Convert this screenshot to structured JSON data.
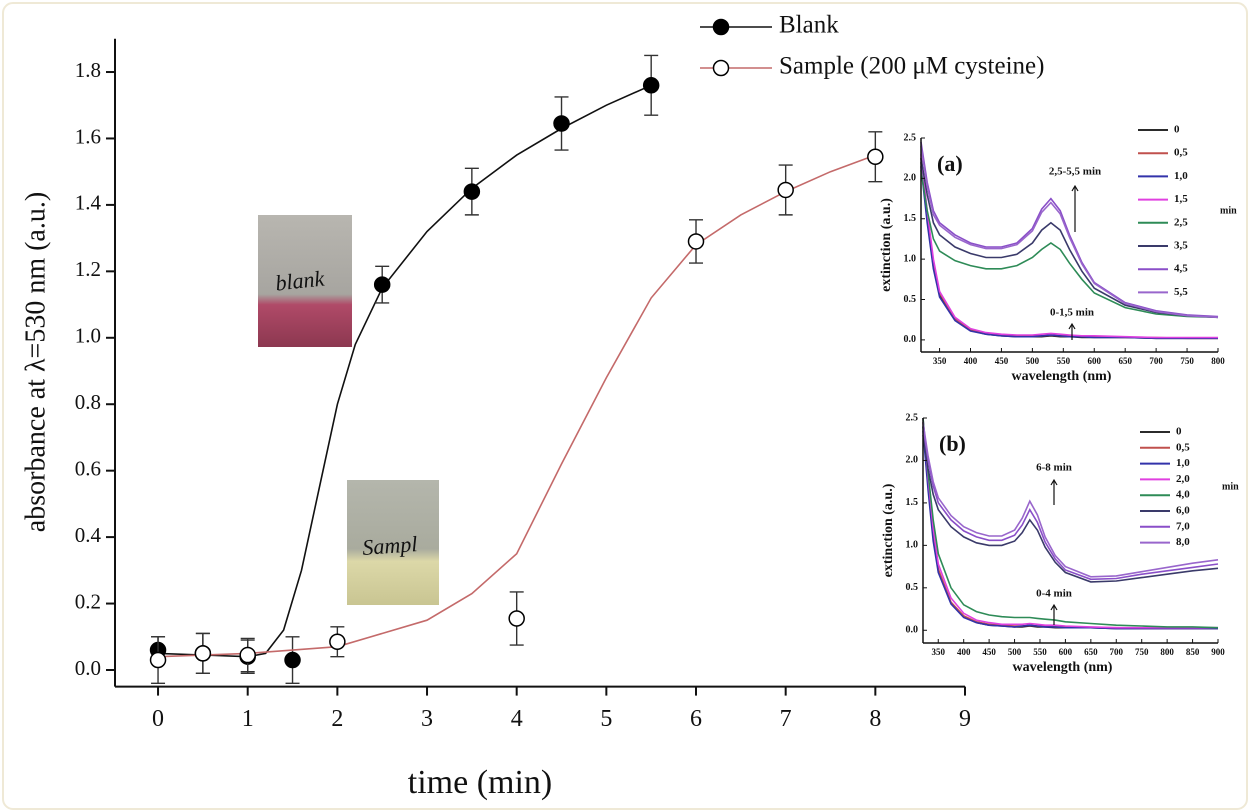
{
  "chart_data": [
    {
      "type": "scatter",
      "xlabel": "time (min)",
      "ylabel": "absorbance at λ=530 nm (a.u.)",
      "xlim": [
        -0.48,
        9
      ],
      "ylim": [
        -0.05,
        1.9
      ],
      "xticks": [
        0,
        1,
        2,
        3,
        4,
        5,
        6,
        7,
        8,
        9
      ],
      "yticks": [
        {
          "value": 0,
          "label": "0.0"
        },
        {
          "value": 0.2,
          "label": "0.2"
        },
        {
          "value": 0.4,
          "label": "0.4"
        },
        {
          "value": 0.6,
          "label": "0.6"
        },
        {
          "value": 0.8,
          "label": "0.8"
        },
        {
          "value": 1,
          "label": "1.0"
        },
        {
          "value": 1.2,
          "label": "1.2"
        },
        {
          "value": 1.4,
          "label": "1.4"
        },
        {
          "value": 1.6,
          "label": "1.6"
        },
        {
          "value": 1.8,
          "label": "1.8"
        }
      ],
      "series": [
        {
          "name": "Blank",
          "color": "#111111",
          "marker_color": "#000000",
          "marker": "filled",
          "x": [
            0,
            0.5,
            1,
            1.5,
            2.5,
            3.5,
            4.5,
            5.5
          ],
          "values": [
            0.06,
            0.05,
            0.04,
            0.03,
            1.16,
            1.44,
            1.645,
            1.76
          ],
          "errors": [
            0.04,
            0.06,
            0.05,
            0.07,
            0.055,
            0.07,
            0.08,
            0.09
          ],
          "fit": {
            "x": [
              0,
              0.5,
              1,
              1.2,
              1.4,
              1.6,
              1.8,
              2.0,
              2.2,
              2.5,
              3.0,
              3.5,
              4.0,
              4.5,
              5.0,
              5.5
            ],
            "values": [
              0.05,
              0.045,
              0.04,
              0.05,
              0.12,
              0.3,
              0.55,
              0.8,
              0.98,
              1.15,
              1.32,
              1.45,
              1.55,
              1.63,
              1.7,
              1.76
            ]
          }
        },
        {
          "name": "Sample (200 μM cysteine)",
          "color": "#c46a6a",
          "marker_color": "#000000",
          "marker": "open",
          "x": [
            0,
            0.5,
            1,
            2,
            4,
            6,
            7,
            8
          ],
          "values": [
            0.03,
            0.05,
            0.045,
            0.085,
            0.155,
            1.29,
            1.445,
            1.545
          ],
          "errors": [
            0.07,
            0.06,
            0.05,
            0.045,
            0.08,
            0.065,
            0.075,
            0.075
          ],
          "fit": {
            "x": [
              0,
              1,
              2,
              3,
              3.5,
              4,
              4.5,
              5,
              5.5,
              6,
              6.5,
              7,
              7.5,
              8
            ],
            "values": [
              0.04,
              0.05,
              0.07,
              0.15,
              0.23,
              0.35,
              0.62,
              0.88,
              1.12,
              1.28,
              1.37,
              1.44,
              1.5,
              1.55
            ]
          }
        }
      ]
    },
    {
      "type": "line",
      "title": "(a)",
      "xlabel": "wavelength (nm)",
      "ylabel": "extinction (a.u.)",
      "legend_unit": "min",
      "xlim": [
        320,
        800
      ],
      "ylim": [
        -0.15,
        2.5
      ],
      "xticks": [
        350,
        400,
        450,
        500,
        550,
        600,
        650,
        700,
        750,
        800
      ],
      "yticks": [
        {
          "value": 0,
          "label": "0.0"
        },
        {
          "value": 0.5,
          "label": "0.5"
        },
        {
          "value": 1,
          "label": "1.0"
        },
        {
          "value": 1.5,
          "label": "1.5"
        },
        {
          "value": 2,
          "label": "2.0"
        },
        {
          "value": 2.5,
          "label": "2.5"
        }
      ],
      "annotations": [
        "2,5-5,5 min",
        "0-1,5 min"
      ],
      "x": [
        320,
        330,
        340,
        350,
        375,
        400,
        425,
        450,
        475,
        500,
        515,
        530,
        545,
        560,
        580,
        600,
        650,
        700,
        750,
        800
      ],
      "series": [
        {
          "name": "0",
          "color": "#2b2b2b",
          "values": [
            2.2,
            1.5,
            0.9,
            0.55,
            0.25,
            0.12,
            0.07,
            0.05,
            0.04,
            0.04,
            0.04,
            0.05,
            0.04,
            0.04,
            0.03,
            0.03,
            0.03,
            0.02,
            0.02,
            0.02
          ]
        },
        {
          "name": "0,5",
          "color": "#c0504d",
          "values": [
            2.25,
            1.55,
            0.95,
            0.58,
            0.26,
            0.13,
            0.08,
            0.06,
            0.05,
            0.05,
            0.05,
            0.06,
            0.05,
            0.05,
            0.04,
            0.04,
            0.03,
            0.03,
            0.02,
            0.02
          ]
        },
        {
          "name": "1,0",
          "color": "#3333aa",
          "values": [
            2.15,
            1.45,
            0.88,
            0.53,
            0.24,
            0.11,
            0.07,
            0.05,
            0.04,
            0.04,
            0.05,
            0.06,
            0.05,
            0.04,
            0.04,
            0.03,
            0.03,
            0.02,
            0.02,
            0.02
          ]
        },
        {
          "name": "1,5",
          "color": "#e040e0",
          "values": [
            2.3,
            1.6,
            1.0,
            0.6,
            0.28,
            0.14,
            0.09,
            0.07,
            0.06,
            0.06,
            0.07,
            0.08,
            0.07,
            0.06,
            0.05,
            0.05,
            0.04,
            0.03,
            0.03,
            0.03
          ]
        },
        {
          "name": "2,5",
          "color": "#2e8b57",
          "values": [
            2.1,
            1.6,
            1.25,
            1.1,
            0.98,
            0.92,
            0.88,
            0.88,
            0.92,
            1.02,
            1.12,
            1.2,
            1.12,
            0.95,
            0.75,
            0.58,
            0.4,
            0.32,
            0.29,
            0.28
          ]
        },
        {
          "name": "3,5",
          "color": "#3a3a6a",
          "values": [
            2.25,
            1.8,
            1.45,
            1.3,
            1.15,
            1.07,
            1.02,
            1.02,
            1.06,
            1.2,
            1.36,
            1.45,
            1.36,
            1.12,
            0.85,
            0.64,
            0.43,
            0.34,
            0.3,
            0.28
          ]
        },
        {
          "name": "4,5",
          "color": "#8a4fc8",
          "values": [
            2.45,
            1.95,
            1.6,
            1.45,
            1.3,
            1.2,
            1.15,
            1.15,
            1.2,
            1.38,
            1.62,
            1.75,
            1.6,
            1.3,
            0.96,
            0.71,
            0.46,
            0.36,
            0.31,
            0.29
          ]
        },
        {
          "name": "5,5",
          "color": "#9966cc",
          "values": [
            2.4,
            1.9,
            1.55,
            1.42,
            1.27,
            1.18,
            1.13,
            1.13,
            1.18,
            1.35,
            1.58,
            1.7,
            1.56,
            1.27,
            0.94,
            0.7,
            0.45,
            0.35,
            0.3,
            0.28
          ]
        }
      ]
    },
    {
      "type": "line",
      "title": "(b)",
      "xlabel": "wavelength (nm)",
      "ylabel": "extinction (a.u.)",
      "legend_unit": "min",
      "xlim": [
        320,
        900
      ],
      "ylim": [
        -0.15,
        2.5
      ],
      "xticks": [
        350,
        400,
        450,
        500,
        550,
        600,
        650,
        700,
        750,
        800,
        850,
        900
      ],
      "yticks": [
        {
          "value": 0,
          "label": "0.0"
        },
        {
          "value": 0.5,
          "label": "0.5"
        },
        {
          "value": 1,
          "label": "1.0"
        },
        {
          "value": 1.5,
          "label": "1.5"
        },
        {
          "value": 2,
          "label": "2.0"
        },
        {
          "value": 2.5,
          "label": "2.5"
        }
      ],
      "annotations": [
        "6-8 min",
        "0-4 min"
      ],
      "x": [
        320,
        330,
        340,
        350,
        375,
        400,
        425,
        450,
        475,
        500,
        515,
        530,
        545,
        560,
        580,
        600,
        650,
        700,
        750,
        800,
        850,
        900
      ],
      "series": [
        {
          "name": "0",
          "color": "#2b2b2b",
          "values": [
            2.4,
            1.7,
            1.1,
            0.7,
            0.32,
            0.16,
            0.09,
            0.06,
            0.05,
            0.04,
            0.04,
            0.05,
            0.04,
            0.04,
            0.03,
            0.03,
            0.03,
            0.02,
            0.02,
            0.02,
            0.02,
            0.02
          ]
        },
        {
          "name": "0,5",
          "color": "#c0504d",
          "values": [
            2.45,
            1.75,
            1.15,
            0.72,
            0.33,
            0.17,
            0.1,
            0.07,
            0.06,
            0.05,
            0.05,
            0.06,
            0.05,
            0.05,
            0.04,
            0.04,
            0.03,
            0.03,
            0.02,
            0.02,
            0.02,
            0.02
          ]
        },
        {
          "name": "1,0",
          "color": "#3333aa",
          "values": [
            2.35,
            1.65,
            1.05,
            0.68,
            0.31,
            0.15,
            0.09,
            0.06,
            0.05,
            0.04,
            0.05,
            0.06,
            0.05,
            0.04,
            0.04,
            0.03,
            0.03,
            0.02,
            0.02,
            0.02,
            0.02,
            0.02
          ]
        },
        {
          "name": "2,0",
          "color": "#e040e0",
          "values": [
            2.5,
            1.8,
            1.2,
            0.78,
            0.38,
            0.2,
            0.12,
            0.09,
            0.07,
            0.07,
            0.07,
            0.08,
            0.07,
            0.06,
            0.06,
            0.05,
            0.04,
            0.03,
            0.03,
            0.03,
            0.03,
            0.03
          ]
        },
        {
          "name": "4,0",
          "color": "#2e8b57",
          "values": [
            2.5,
            1.85,
            1.3,
            0.9,
            0.5,
            0.3,
            0.22,
            0.18,
            0.16,
            0.15,
            0.15,
            0.15,
            0.14,
            0.13,
            0.12,
            0.1,
            0.08,
            0.06,
            0.05,
            0.04,
            0.04,
            0.03
          ]
        },
        {
          "name": "6,0",
          "color": "#3a3a6a",
          "values": [
            2.3,
            1.9,
            1.6,
            1.42,
            1.22,
            1.1,
            1.03,
            1.0,
            1.0,
            1.05,
            1.15,
            1.3,
            1.18,
            0.98,
            0.8,
            0.68,
            0.57,
            0.58,
            0.62,
            0.66,
            0.7,
            0.73
          ]
        },
        {
          "name": "7,0",
          "color": "#8a4fc8",
          "values": [
            2.4,
            2.0,
            1.7,
            1.5,
            1.3,
            1.17,
            1.1,
            1.06,
            1.06,
            1.12,
            1.24,
            1.42,
            1.27,
            1.04,
            0.84,
            0.71,
            0.6,
            0.61,
            0.66,
            0.7,
            0.74,
            0.78
          ]
        },
        {
          "name": "8,0",
          "color": "#9966cc",
          "values": [
            2.45,
            2.05,
            1.75,
            1.56,
            1.35,
            1.22,
            1.15,
            1.11,
            1.11,
            1.18,
            1.32,
            1.52,
            1.36,
            1.1,
            0.88,
            0.75,
            0.63,
            0.64,
            0.69,
            0.74,
            0.79,
            0.83
          ]
        }
      ]
    }
  ],
  "photos": [
    {
      "label": "blank"
    },
    {
      "label": "Sampl"
    }
  ]
}
